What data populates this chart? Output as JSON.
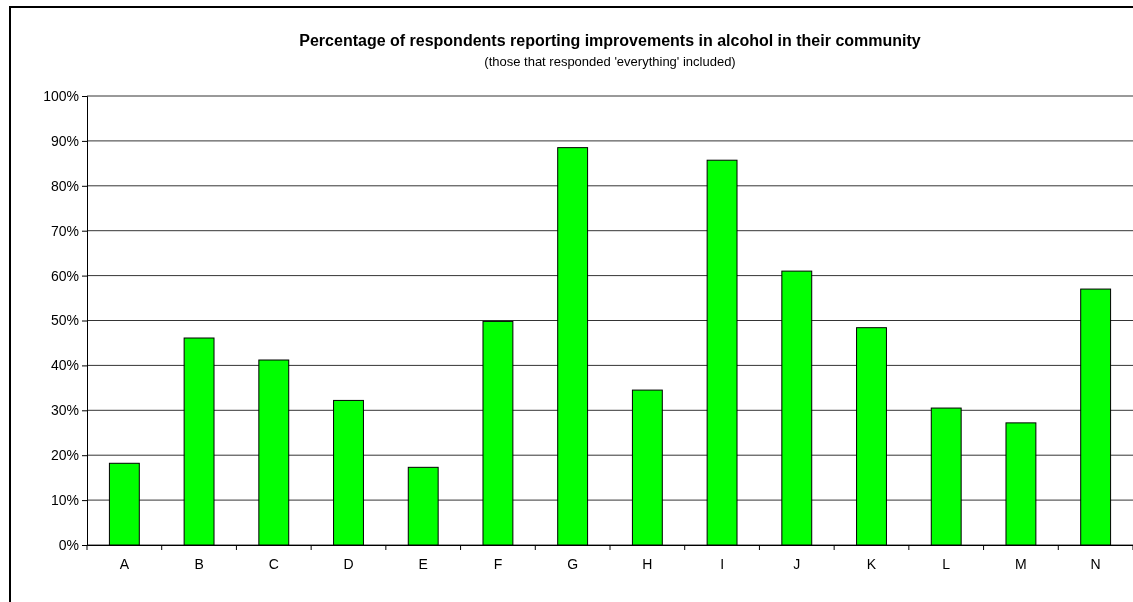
{
  "chart_data": {
    "type": "bar",
    "title": "Percentage of respondents reporting improvements in alcohol in their community",
    "subtitle": "(those that responded 'everything' included)",
    "categories": [
      "A",
      "B",
      "C",
      "D",
      "E",
      "F",
      "G",
      "H",
      "I",
      "J",
      "K",
      "L",
      "M",
      "N"
    ],
    "values": [
      18.2,
      46.1,
      41.2,
      32.2,
      17.3,
      49.8,
      88.5,
      34.5,
      85.7,
      61.0,
      48.4,
      30.5,
      27.2,
      57.0
    ],
    "color": "#00ff00",
    "ylim": [
      0,
      100
    ],
    "yticks": [
      {
        "value": 0,
        "label": "0%"
      },
      {
        "value": 10,
        "label": "10%"
      },
      {
        "value": 20,
        "label": "20%"
      },
      {
        "value": 30,
        "label": "30%"
      },
      {
        "value": 40,
        "label": "40%"
      },
      {
        "value": 50,
        "label": "50%"
      },
      {
        "value": 60,
        "label": "60%"
      },
      {
        "value": 70,
        "label": "70%"
      },
      {
        "value": 80,
        "label": "80%"
      },
      {
        "value": 90,
        "label": "90%"
      },
      {
        "value": 100,
        "label": "100%"
      }
    ],
    "grid": "y"
  }
}
